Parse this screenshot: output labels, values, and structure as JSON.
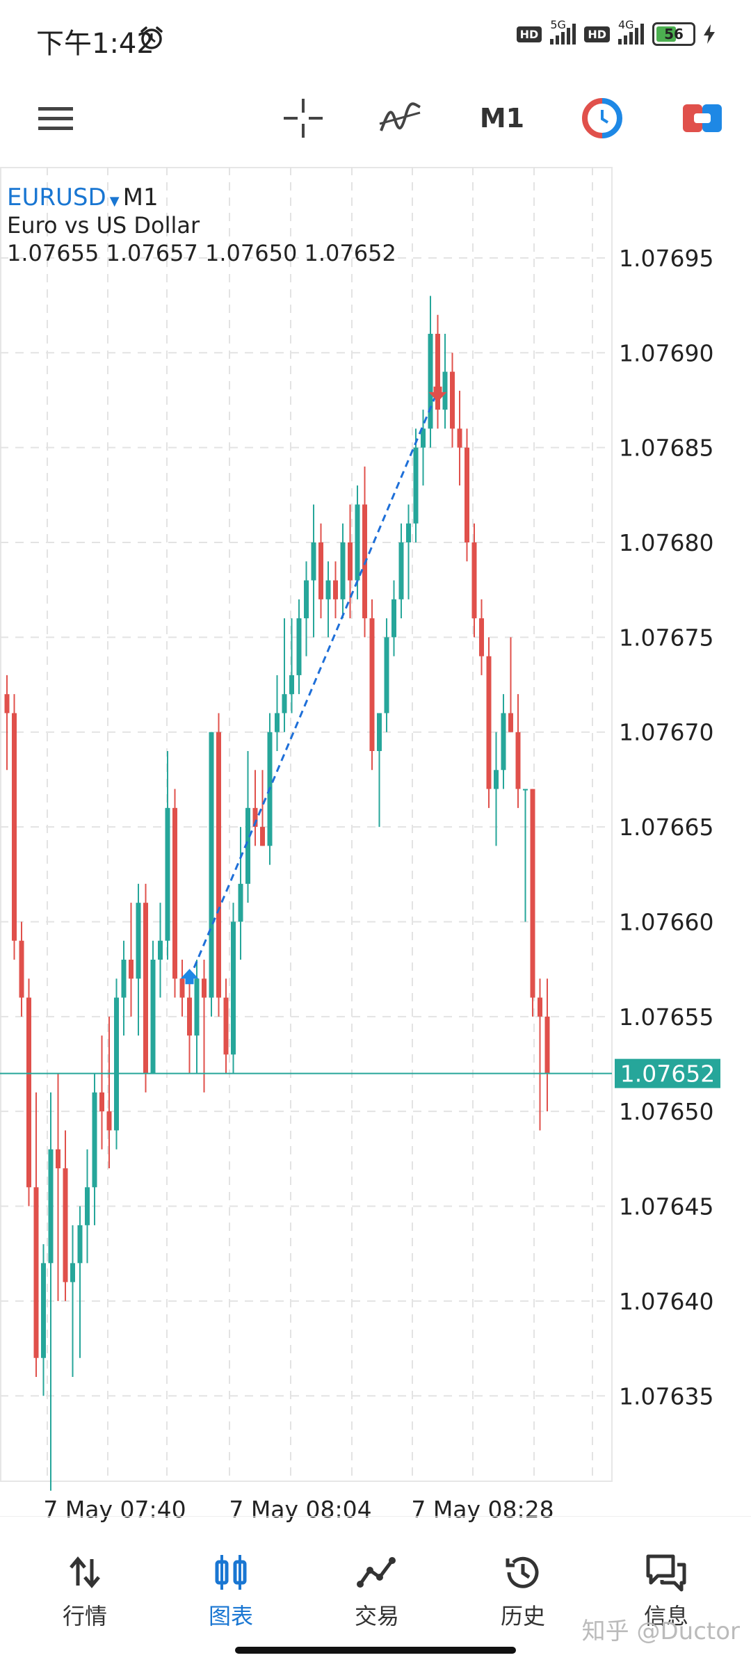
{
  "status": {
    "time": "下午1:42",
    "net1": "5G",
    "net2": "4G",
    "hd": "HD",
    "battery": "56"
  },
  "toolbar": {
    "timeframe": "M1",
    "icons": [
      "menu-icon",
      "crosshair-icon",
      "indicators-icon",
      "one-click-trading-icon",
      "trade-panel-icon"
    ]
  },
  "chart": {
    "symbol": "EURUSD",
    "timeframe": "M1",
    "description": "Euro vs US Dollar",
    "ohlc": "1.07655 1.07657 1.07650 1.07652",
    "current_price": "1.07652",
    "colors": {
      "bull": "#26a69a",
      "bear": "#e0504b",
      "price_line": "#26a69a",
      "trade_line": "#1e6fd8"
    }
  },
  "chart_data": {
    "type": "candlestick",
    "y_ticks": [
      "1.07695",
      "1.07690",
      "1.07685",
      "1.07680",
      "1.07675",
      "1.07670",
      "1.07665",
      "1.07660",
      "1.07655",
      "1.07650",
      "1.07645",
      "1.07640",
      "1.07635"
    ],
    "x_ticks": [
      "7 May 07:40",
      "7 May 08:04",
      "7 May 08:28"
    ],
    "ylim": [
      1.076305,
      1.076998
    ],
    "current_price": 1.07652,
    "candles": [
      [
        1.07672,
        1.07673,
        1.07668,
        1.07671
      ],
      [
        1.07671,
        1.07672,
        1.07658,
        1.07659
      ],
      [
        1.07659,
        1.0766,
        1.07655,
        1.07656
      ],
      [
        1.07656,
        1.07657,
        1.07645,
        1.07646
      ],
      [
        1.07646,
        1.07651,
        1.07636,
        1.07637
      ],
      [
        1.07637,
        1.07643,
        1.07635,
        1.07642
      ],
      [
        1.07642,
        1.07651,
        1.0763,
        1.07648
      ],
      [
        1.07648,
        1.07652,
        1.0764,
        1.07647
      ],
      [
        1.07647,
        1.07649,
        1.0764,
        1.07641
      ],
      [
        1.07641,
        1.07644,
        1.07636,
        1.07642
      ],
      [
        1.07642,
        1.07645,
        1.07637,
        1.07644
      ],
      [
        1.07644,
        1.07648,
        1.07642,
        1.07646
      ],
      [
        1.07646,
        1.07652,
        1.07644,
        1.07651
      ],
      [
        1.07651,
        1.07654,
        1.07648,
        1.0765
      ],
      [
        1.0765,
        1.07655,
        1.07647,
        1.07649
      ],
      [
        1.07649,
        1.07657,
        1.07648,
        1.07656
      ],
      [
        1.07656,
        1.07659,
        1.07654,
        1.07658
      ],
      [
        1.07658,
        1.07661,
        1.07655,
        1.07657
      ],
      [
        1.07657,
        1.07662,
        1.07654,
        1.07661
      ],
      [
        1.07661,
        1.07662,
        1.07651,
        1.07652
      ],
      [
        1.07652,
        1.07659,
        1.07652,
        1.07658
      ],
      [
        1.07658,
        1.07661,
        1.07656,
        1.07659
      ],
      [
        1.07659,
        1.07669,
        1.07658,
        1.07666
      ],
      [
        1.07666,
        1.07667,
        1.07656,
        1.07657
      ],
      [
        1.07657,
        1.07658,
        1.07655,
        1.07656
      ],
      [
        1.07656,
        1.07657,
        1.07652,
        1.07654
      ],
      [
        1.07654,
        1.07658,
        1.07652,
        1.07657
      ],
      [
        1.07657,
        1.07658,
        1.07651,
        1.07656
      ],
      [
        1.07656,
        1.0767,
        1.07655,
        1.0767
      ],
      [
        1.0767,
        1.07671,
        1.07655,
        1.07656
      ],
      [
        1.07656,
        1.07657,
        1.07652,
        1.07653
      ],
      [
        1.07653,
        1.07661,
        1.07652,
        1.0766
      ],
      [
        1.0766,
        1.07665,
        1.07658,
        1.07662
      ],
      [
        1.07662,
        1.07669,
        1.07661,
        1.07666
      ],
      [
        1.07666,
        1.07668,
        1.07664,
        1.07665
      ],
      [
        1.07665,
        1.07668,
        1.07664,
        1.07664
      ],
      [
        1.07664,
        1.07671,
        1.07663,
        1.0767
      ],
      [
        1.0767,
        1.07673,
        1.07669,
        1.07671
      ],
      [
        1.07671,
        1.07676,
        1.0767,
        1.07672
      ],
      [
        1.07672,
        1.07676,
        1.07671,
        1.07673
      ],
      [
        1.07673,
        1.07677,
        1.07672,
        1.07676
      ],
      [
        1.07676,
        1.07679,
        1.07674,
        1.07678
      ],
      [
        1.07678,
        1.07682,
        1.07675,
        1.0768
      ],
      [
        1.0768,
        1.07681,
        1.07676,
        1.07677
      ],
      [
        1.07677,
        1.07679,
        1.07675,
        1.07678
      ],
      [
        1.07678,
        1.07679,
        1.07676,
        1.07677
      ],
      [
        1.07677,
        1.07681,
        1.07676,
        1.0768
      ],
      [
        1.0768,
        1.07682,
        1.07676,
        1.07678
      ],
      [
        1.07678,
        1.07683,
        1.07677,
        1.07682
      ],
      [
        1.07682,
        1.07684,
        1.07675,
        1.07676
      ],
      [
        1.07676,
        1.07677,
        1.07668,
        1.07669
      ],
      [
        1.07669,
        1.07671,
        1.07665,
        1.07671
      ],
      [
        1.07671,
        1.07676,
        1.0767,
        1.07675
      ],
      [
        1.07675,
        1.07678,
        1.07674,
        1.07677
      ],
      [
        1.07677,
        1.07681,
        1.07676,
        1.0768
      ],
      [
        1.0768,
        1.07682,
        1.07677,
        1.07681
      ],
      [
        1.07681,
        1.07686,
        1.0768,
        1.07685
      ],
      [
        1.07685,
        1.07687,
        1.07683,
        1.07686
      ],
      [
        1.07686,
        1.07693,
        1.07685,
        1.07691
      ],
      [
        1.07691,
        1.07692,
        1.07686,
        1.07687
      ],
      [
        1.07687,
        1.07691,
        1.07686,
        1.07689
      ],
      [
        1.07689,
        1.0769,
        1.07685,
        1.07686
      ],
      [
        1.07686,
        1.07688,
        1.07683,
        1.07685
      ],
      [
        1.07685,
        1.07686,
        1.07679,
        1.0768
      ],
      [
        1.0768,
        1.07681,
        1.07675,
        1.07676
      ],
      [
        1.07676,
        1.07677,
        1.07673,
        1.07674
      ],
      [
        1.07674,
        1.07675,
        1.07666,
        1.07667
      ],
      [
        1.07667,
        1.0767,
        1.07664,
        1.07668
      ],
      [
        1.07668,
        1.07672,
        1.07667,
        1.07671
      ],
      [
        1.07671,
        1.07675,
        1.0767,
        1.0767
      ],
      [
        1.0767,
        1.07672,
        1.07666,
        1.07667
      ],
      [
        1.07667,
        1.07667,
        1.0766,
        1.07667
      ],
      [
        1.07667,
        1.07667,
        1.07655,
        1.07656
      ],
      [
        1.07656,
        1.07657,
        1.07649,
        1.07655
      ],
      [
        1.07655,
        1.07657,
        1.0765,
        1.07652
      ]
    ],
    "trade": {
      "entry_index": 25,
      "entry_price": 1.07657,
      "exit_index": 59,
      "exit_price": 1.07688
    }
  },
  "nav": [
    {
      "label": "行情",
      "icon": "quotes-icon"
    },
    {
      "label": "图表",
      "icon": "chart-icon"
    },
    {
      "label": "交易",
      "icon": "trade-icon"
    },
    {
      "label": "历史",
      "icon": "history-icon"
    },
    {
      "label": "信息",
      "icon": "messages-icon"
    }
  ],
  "watermark": "知乎 @Ductor"
}
